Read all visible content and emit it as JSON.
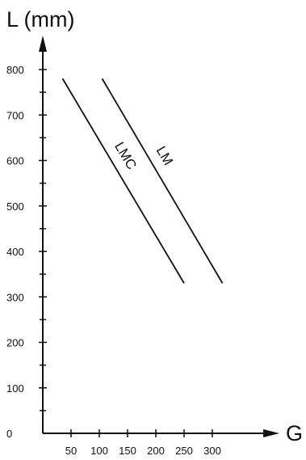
{
  "chart_data": {
    "type": "line",
    "ylabel": "L (mm)",
    "xlabel": "G",
    "xlim": [
      0,
      330
    ],
    "ylim": [
      0,
      830
    ],
    "x_ticks": [
      50,
      100,
      150,
      200,
      250,
      300
    ],
    "x_tick_labels": [
      "50",
      "100",
      "150",
      "200",
      "250",
      "300"
    ],
    "y_ticks": [
      0,
      100,
      200,
      300,
      400,
      500,
      600,
      700,
      800
    ],
    "y_tick_labels": [
      "0",
      "100",
      "200",
      "300",
      "400",
      "500",
      "600",
      "700",
      "800"
    ],
    "y_minor_step": 50,
    "grid": false,
    "series": [
      {
        "name": "LMC",
        "x": [
          35,
          250
        ],
        "y": [
          780,
          330
        ]
      },
      {
        "name": "LM",
        "x": [
          105,
          318
        ],
        "y": [
          780,
          330
        ]
      }
    ]
  }
}
